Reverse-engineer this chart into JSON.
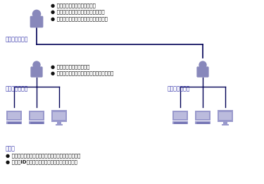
{
  "bg_color": "#ffffff",
  "person_color": "#8888bb",
  "line_color": "#000055",
  "computer_body_color": "#9999cc",
  "computer_screen_color": "#bbbbdd",
  "text_color_blue": "#3333aa",
  "text_color_black": "#111111",
  "sys_admin_label": "システム管理者",
  "local_admin_label": "ローカル管理者",
  "user_label": "利用者",
  "sys_admin_bullets": [
    "セキュリティポリシーの定義",
    "ローカル管理者の管理者業務を設計",
    "ローカル管理者へ必要な権限を与える"
  ],
  "local_admin_bullets": [
    "インストール指示、支援",
    "リモートヘルプなど委譲された権限の行使"
  ],
  "user_bullets": [
    "指定されたインストーラの実行（インストール時）",
    "利用者IDとパスワード入力（パソコン起動時）"
  ],
  "figsize": [
    3.75,
    2.61
  ],
  "dpi": 100
}
